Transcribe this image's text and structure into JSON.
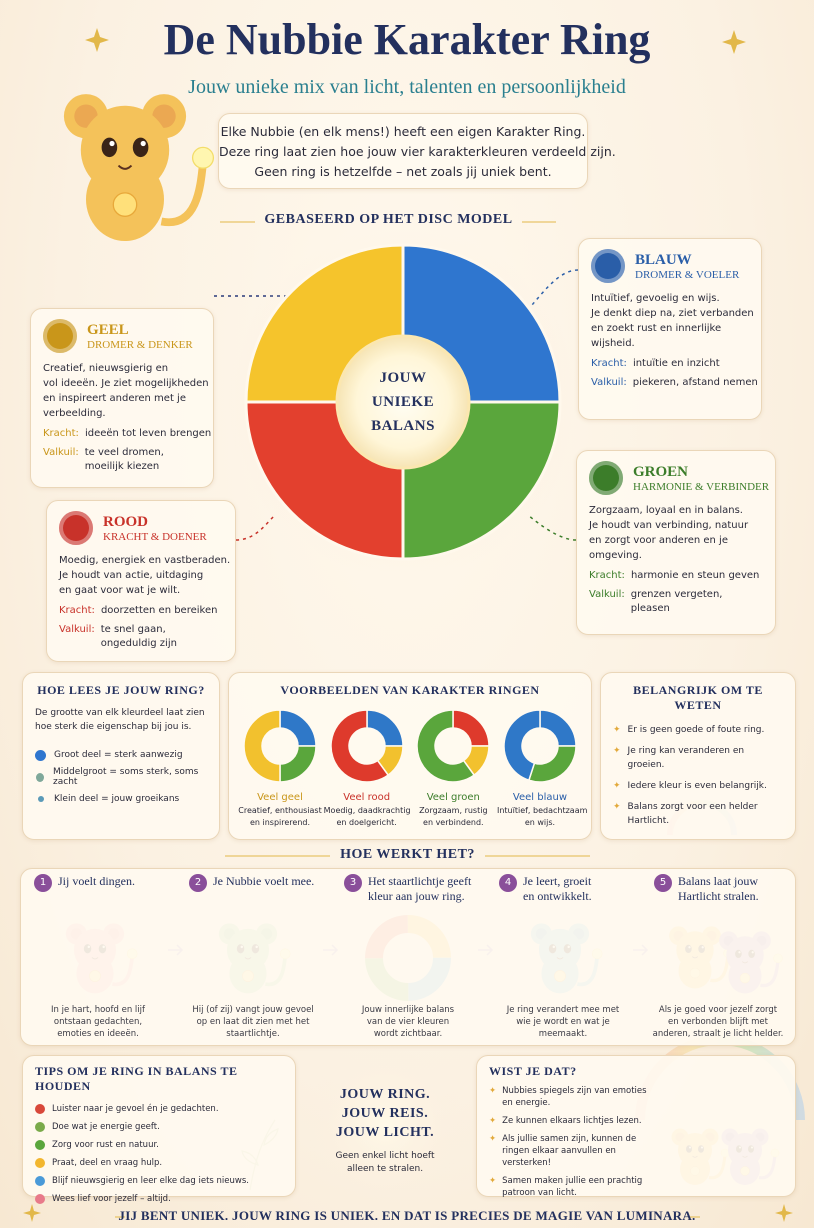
{
  "header": {
    "title": "De Nubbie Karakter Ring",
    "subtitle": "Jouw unieke mix van licht, talenten en persoonlijkheid",
    "intro": [
      "Elke Nubbie (en elk mens!) heeft een eigen Karakter Ring.",
      "Deze ring laat zien hoe jouw vier karakterkleuren verdeeld zijn.",
      "Geen ring is hetzelfde – net zoals jij uniek bent."
    ]
  },
  "disc": {
    "heading": "GEBASEERD OP HET DISC MODEL",
    "center": [
      "JOUW",
      "UNIEKE",
      "BALANS"
    ]
  },
  "colors": [
    {
      "name": "GEEL",
      "role": "DROMER & DENKER",
      "color": "#c9961a",
      "description": [
        "Creatief, nieuwsgierig en",
        "vol ideeën. Je ziet mogelijkheden",
        "en inspireert anderen met je",
        "verbeelding."
      ],
      "strength_label": "Kracht:",
      "strength": [
        "ideeën tot leven brengen"
      ],
      "pitfall_label": "Valkuil:",
      "pitfall": [
        "te veel dromen,",
        "moeilijk kiezen"
      ]
    },
    {
      "name": "BLAUW",
      "role": "DROMER & VOELER",
      "color": "#2a5ea8",
      "description": [
        "Intuïtief, gevoelig en wijs.",
        "Je denkt diep na, ziet verbanden",
        "en zoekt rust en innerlijke",
        "wijsheid."
      ],
      "strength_label": "Kracht:",
      "strength": [
        "intuïtie en inzicht"
      ],
      "pitfall_label": "Valkuil:",
      "pitfall": [
        "piekeren, afstand nemen"
      ]
    },
    {
      "name": "GROEN",
      "role": "HARMONIE & VERBINDER",
      "color": "#3c7d2a",
      "description": [
        "Zorgzaam, loyaal en in balans.",
        "Je houdt van verbinding, natuur",
        "en zorgt voor anderen en je",
        "omgeving."
      ],
      "strength_label": "Kracht:",
      "strength": [
        "harmonie en steun geven"
      ],
      "pitfall_label": "Valkuil:",
      "pitfall": [
        "grenzen vergeten,",
        "pleasen"
      ]
    },
    {
      "name": "ROOD",
      "role": "KRACHT & DOENER",
      "color": "#c8322a",
      "description": [
        "Moedig, energiek en vastberaden.",
        "Je houdt van actie, uitdaging",
        "en gaat voor wat je wilt."
      ],
      "strength_label": "Kracht:",
      "strength": [
        "doorzetten en bereiken"
      ],
      "pitfall_label": "Valkuil:",
      "pitfall": [
        "te snel gaan,",
        "ongeduldig zijn"
      ]
    }
  ],
  "legend": {
    "heading": "HOE LEES JE JOUW RING?",
    "text": [
      "De grootte van elk kleurdeel laat zien",
      "hoe sterk die eigenschap bij jou is."
    ],
    "items": [
      "Groot deel = sterk aanwezig",
      "Middelgroot = soms sterk, soms zacht",
      "Klein deel = jouw groeikans"
    ]
  },
  "examples": {
    "heading": "VOORBEELDEN VAN KARAKTER RINGEN",
    "rings": [
      {
        "label": "Veel geel",
        "color": "#c9961a",
        "description": [
          "Creatief, enthousiast",
          "en inspirerend."
        ],
        "segments": [
          {
            "color": "#2f78c8",
            "value": 25
          },
          {
            "color": "#5aa63c",
            "value": 25
          },
          {
            "color": "#f2c12e",
            "value": 50
          }
        ]
      },
      {
        "label": "Veel rood",
        "color": "#c8322a",
        "description": [
          "Moedig, daadkrachtig",
          "en doelgericht."
        ],
        "segments": [
          {
            "color": "#2f78c8",
            "value": 25
          },
          {
            "color": "#f2c12e",
            "value": 15
          },
          {
            "color": "#de3a2c",
            "value": 60
          }
        ]
      },
      {
        "label": "Veel groen",
        "color": "#3c7d2a",
        "description": [
          "Zorgzaam, rustig",
          "en verbindend."
        ],
        "segments": [
          {
            "color": "#de3a2c",
            "value": 25
          },
          {
            "color": "#f2c12e",
            "value": 15
          },
          {
            "color": "#5aa63c",
            "value": 60
          }
        ]
      },
      {
        "label": "Veel blauw",
        "color": "#2a5ea8",
        "description": [
          "Intuïtief, bedachtzaam",
          "en wijs."
        ],
        "segments": [
          {
            "color": "#2f78c8",
            "value": 25
          },
          {
            "color": "#5aa63c",
            "value": 30
          },
          {
            "color": "#2f78c8",
            "value": 45
          }
        ]
      }
    ]
  },
  "important": {
    "heading": "BELANGRIJK OM TE WETEN",
    "items": [
      "Er is geen goede of foute ring.",
      "Je ring kan veranderen en groeien.",
      "Iedere kleur is even belangrijk.",
      "Balans zorgt voor een helder Hartlicht."
    ]
  },
  "steps": {
    "heading": "HOE WERKT HET?",
    "items": [
      {
        "number": "1",
        "title": [
          "Jij voelt dingen."
        ],
        "text": [
          "In je hart, hoofd en lijf",
          "ontstaan gedachten,",
          "emoties en ideeën."
        ]
      },
      {
        "number": "2",
        "title": [
          "Je Nubbie voelt mee."
        ],
        "text": [
          "Hij (of zij) vangt jouw gevoel",
          "op en laat dit zien met het",
          "staartlichtje."
        ]
      },
      {
        "number": "3",
        "title": [
          "Het staartlichtje geeft",
          "kleur aan jouw ring."
        ],
        "text": [
          "Jouw innerlijke balans",
          "van de vier kleuren",
          "wordt zichtbaar."
        ]
      },
      {
        "number": "4",
        "title": [
          "Je leert, groeit",
          "en ontwikkelt."
        ],
        "text": [
          "Je ring verandert mee met",
          "wie je wordt en wat je",
          "meemaakt."
        ]
      },
      {
        "number": "5",
        "title": [
          "Balans laat jouw",
          "Hartlicht stralen."
        ],
        "text": [
          "Als je goed voor jezelf zorgt",
          "en verbonden blijft met",
          "anderen, straalt je licht helder."
        ]
      }
    ]
  },
  "tips": {
    "heading": "TIPS OM JE RING IN BALANS TE HOUDEN",
    "items": [
      "Luister naar je gevoel én je gedachten.",
      "Doe wat je energie geeft.",
      "Zorg voor rust en natuur.",
      "Praat, deel en vraag hulp.",
      "Blijf nieuwsgierig en leer elke dag iets nieuws.",
      "Wees lief voor jezelf – altijd."
    ]
  },
  "motto": {
    "lines": [
      "JOUW RING.",
      "JOUW REIS.",
      "JOUW LICHT."
    ],
    "text": [
      "Geen enkel licht hoeft",
      "alleen te stralen."
    ]
  },
  "facts": {
    "heading": "WIST JE DAT?",
    "items": [
      "Nubbies spiegels zijn van emoties en energie.",
      "Ze kunnen elkaars lichtjes lezen.",
      "Als jullie samen zijn, kunnen de ringen elkaar aanvullen en versterken!",
      "Samen maken jullie een prachtig patroon van licht."
    ]
  },
  "footer": "JIJ BENT UNIEK. JOUW RING IS UNIEK. EN DAT IS PRECIES DE MAGIE VAN LUMINARA."
}
